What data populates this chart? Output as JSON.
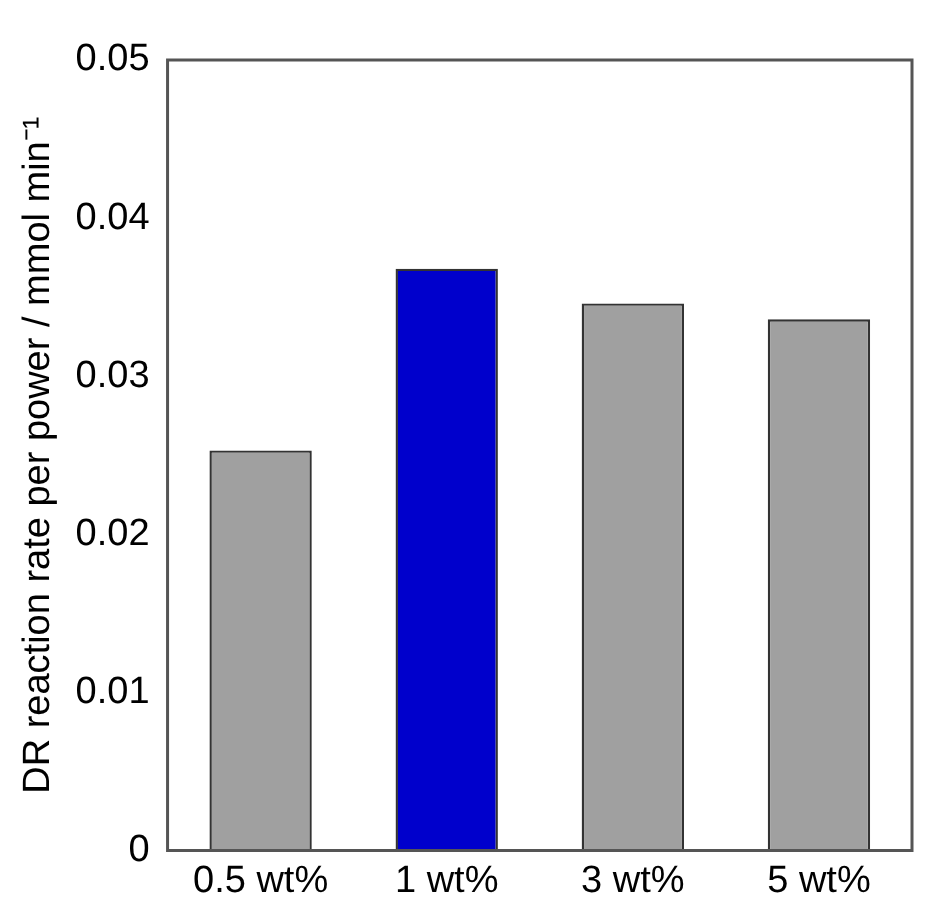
{
  "chart_data": {
    "type": "bar",
    "ylabel": "DR reaction rate per power / mmol min⁻¹",
    "categories": [
      "0.5 wt%",
      "1 wt%",
      "3 wt%",
      "5 wt%"
    ],
    "values": [
      0.0253,
      0.0368,
      0.0346,
      0.0336
    ],
    "colors": [
      "#a0a0a0",
      "#0000cc",
      "#a0a0a0",
      "#a0a0a0"
    ],
    "ylim": [
      0,
      0.05
    ],
    "yticks": [
      0,
      0.01,
      0.02,
      0.03,
      0.04,
      0.05
    ],
    "grid": false,
    "legend": false
  }
}
